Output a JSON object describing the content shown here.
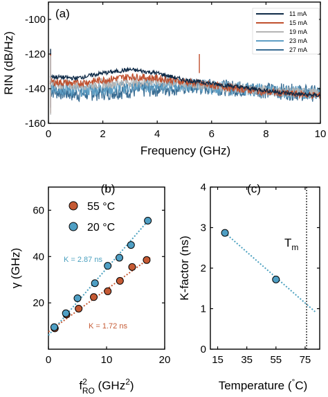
{
  "colors": {
    "i11": "#0e2a47",
    "i15": "#c0502e",
    "i19": "#b5b5b5",
    "i23": "#5e9ec4",
    "i27": "#3a6d93",
    "c55": "#c55a34",
    "c20": "#4f9fc4",
    "fit55": "#c55a34",
    "fit20": "#4aa0bf",
    "kline": "#4aa0bf"
  },
  "chart_data": [
    {
      "type": "line",
      "panel_label": "(a)",
      "xlabel": "Frequency (GHz)",
      "ylabel": "RIN (dB/Hz)",
      "xlim": [
        0,
        10
      ],
      "ylim": [
        -160,
        -90
      ],
      "xticks": [
        "0",
        "2",
        "4",
        "6",
        "8",
        "10"
      ],
      "yticks": [
        "-100",
        "-120",
        "-140",
        "-160"
      ],
      "legend_position": "top-right",
      "series": [
        {
          "name": "11 mA",
          "color_key": "i11",
          "x": [
            0.1,
            1,
            2,
            3,
            4,
            5,
            6,
            7,
            8,
            9,
            10
          ],
          "values": [
            -133,
            -134,
            -131,
            -129,
            -131,
            -135,
            -137,
            -139,
            -141,
            -143,
            -144
          ]
        },
        {
          "name": "15 mA",
          "color_key": "i15",
          "x": [
            0.1,
            1,
            2,
            3,
            4,
            5,
            6,
            7,
            8,
            9,
            10
          ],
          "values": [
            -136,
            -137,
            -135,
            -133,
            -134,
            -136,
            -138,
            -140,
            -142,
            -143,
            -144
          ]
        },
        {
          "name": "19 mA",
          "color_key": "i19",
          "x": [
            0.1,
            1,
            2,
            3,
            4,
            5,
            6,
            7,
            8,
            9,
            10
          ],
          "values": [
            -137,
            -138,
            -137,
            -136,
            -136,
            -137,
            -138,
            -140,
            -141,
            -142,
            -143
          ]
        },
        {
          "name": "23 mA",
          "color_key": "i23",
          "x": [
            0.1,
            1,
            2,
            3,
            4,
            5,
            6,
            7,
            8,
            9,
            10
          ],
          "values": [
            -139,
            -141,
            -140,
            -139,
            -138,
            -138,
            -139,
            -140,
            -141,
            -142,
            -143
          ]
        },
        {
          "name": "27 mA",
          "color_key": "i27",
          "x": [
            0.1,
            1,
            2,
            3,
            4,
            5,
            6,
            7,
            8,
            9,
            10
          ],
          "values": [
            -141,
            -143,
            -142,
            -141,
            -140,
            -139,
            -139,
            -140,
            -141,
            -142,
            -143
          ]
        }
      ]
    },
    {
      "type": "scatter",
      "panel_label": "(b)",
      "xlabel_main": "f",
      "xlabel_sup": "2",
      "xlabel_sub": "RO",
      "xlabel_rest": " (GHz",
      "xlabel_unit_sup": "2",
      "xlabel_end": ")",
      "ylabel": "γ (GHz)",
      "xlim": [
        0,
        20
      ],
      "ylim": [
        0,
        70
      ],
      "xticks": [
        "0",
        "10",
        "20"
      ],
      "yticks": [
        "20",
        "40",
        "60"
      ],
      "legend_position": "top-left",
      "series": [
        {
          "name": "55 °C",
          "color_key": "c55",
          "x": [
            1.1,
            3.1,
            5.2,
            7.8,
            10.2,
            12.3,
            14.4,
            16.9
          ],
          "values": [
            9.0,
            15.0,
            17.5,
            22.5,
            25.0,
            29.5,
            35.5,
            38.5
          ]
        },
        {
          "name": "20 °C",
          "color_key": "c20",
          "x": [
            1.0,
            3.0,
            5.0,
            8.0,
            10.2,
            12.2,
            14.2,
            17.1
          ],
          "values": [
            9.5,
            15.5,
            22.0,
            28.5,
            36.0,
            39.5,
            45.0,
            55.5
          ]
        }
      ],
      "fits": [
        {
          "label": "K = 2.87 ns",
          "color_key": "fit20",
          "x": [
            0,
            17.5
          ],
          "values": [
            6.0,
            56.5
          ]
        },
        {
          "label": "K = 1.72 ns",
          "color_key": "fit55",
          "x": [
            0,
            17.5
          ],
          "values": [
            7.5,
            39.5
          ]
        }
      ]
    },
    {
      "type": "scatter",
      "panel_label": "(c)",
      "xlabel": "Temperature (°C)",
      "xlabel_main": "Temperature (",
      "xlabel_deg": "°",
      "xlabel_end": "C)",
      "ylabel": "K-factor (ns)",
      "xlim": [
        10,
        85
      ],
      "ylim": [
        0,
        4
      ],
      "xticks": [
        "15",
        "35",
        "55",
        "75"
      ],
      "yticks": [
        "0",
        "1",
        "2",
        "3",
        "4"
      ],
      "annotation_main": "T",
      "annotation_sub": "m",
      "vline_x": 76,
      "series": [
        {
          "name": "K-factor",
          "color_key": "c20",
          "x": [
            20,
            55
          ],
          "values": [
            2.87,
            1.72
          ]
        }
      ],
      "fit": {
        "color_key": "kline",
        "x": [
          20,
          82
        ],
        "values": [
          2.87,
          0.92
        ]
      }
    }
  ]
}
